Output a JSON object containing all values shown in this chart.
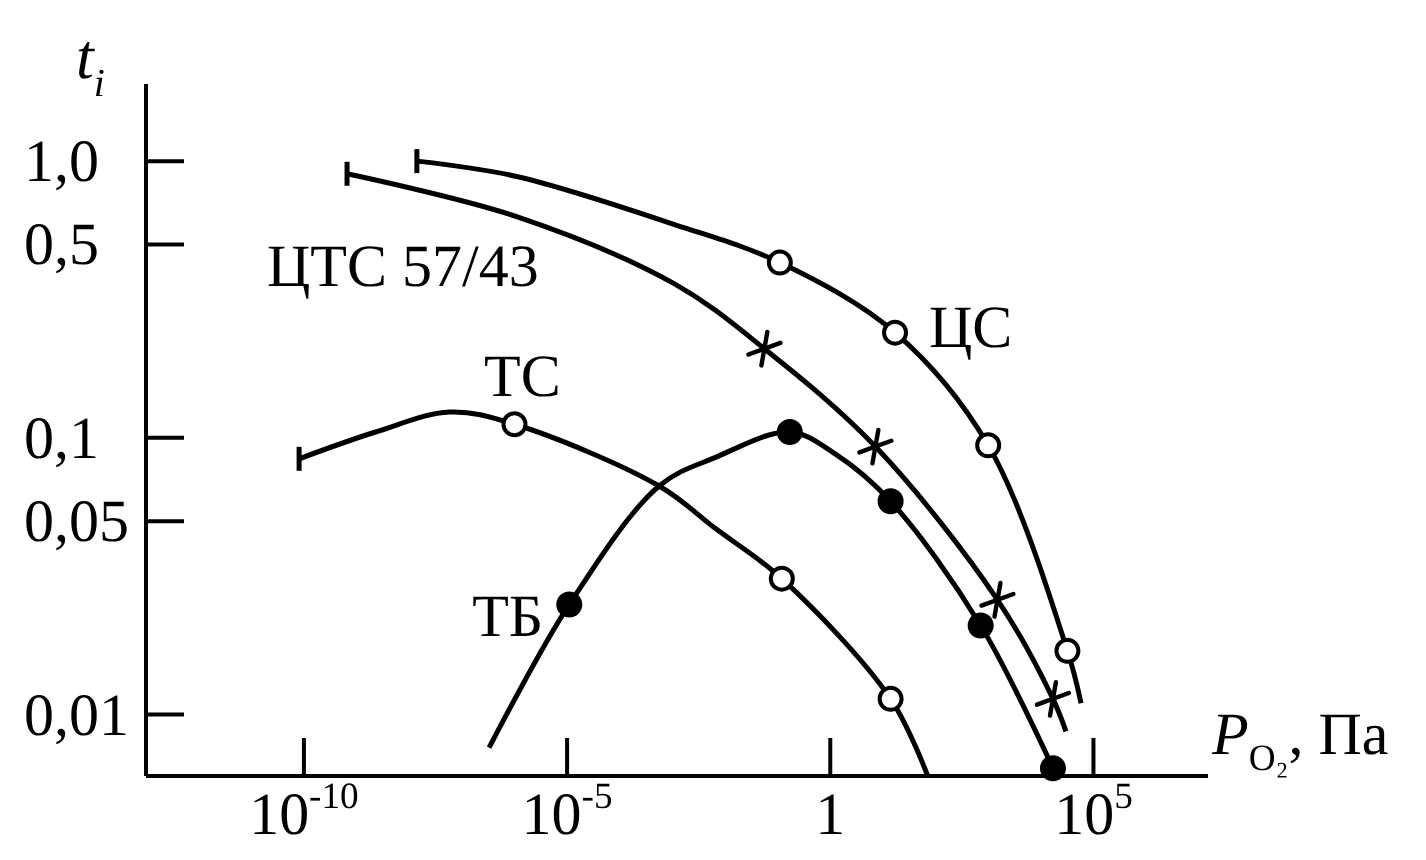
{
  "chart_data": {
    "type": "line",
    "xlabel": "P$_{O₂}$, Па",
    "ylabel": "t$_{i}$",
    "log": "xy",
    "xlim": [
      1e-13,
      15000000.0
    ],
    "ylim": [
      0.006,
      1.9
    ],
    "xticks": [
      {
        "value": 1e-10,
        "label": "10$^{-10}$"
      },
      {
        "value": 1e-05,
        "label": "10$^{-5}$"
      },
      1,
      {
        "value": 100000,
        "label": "10$^{5}$"
      }
    ],
    "yticks": [
      {
        "value": 0.01,
        "label": "0,01"
      },
      {
        "value": 0.05,
        "label": "0,05"
      },
      {
        "value": 0.1,
        "label": "0,1"
      },
      {
        "value": 0.5,
        "label": "0,5"
      },
      {
        "value": 1,
        "label": "1,0"
      }
    ],
    "series": [
      {
        "name": "ЦС",
        "color": "#000000",
        "x": [
          1.4e-08,
          1.1e-06,
          0.0011,
          0.11,
          17,
          1000,
          32000,
          58000
        ],
        "values": [
          1.0,
          0.88,
          0.59,
          0.43,
          0.24,
          0.094,
          0.017,
          0.011
        ]
      },
      {
        "type": "scatter",
        "marker": "circle",
        "color": "#ffffff",
        "x": [
          0.11,
          17,
          1000,
          32000
        ],
        "values": [
          0.43,
          0.24,
          0.094,
          0.017
        ]
      },
      {
        "name": "ЦТС 57/43",
        "color": "#000000",
        "x": [
          6.6e-10,
          1.1e-06,
          0.0011,
          0.056,
          7.2,
          1500,
          17000,
          30000
        ],
        "values": [
          0.9,
          0.63,
          0.36,
          0.21,
          0.093,
          0.026,
          0.0114,
          0.0087
        ]
      },
      {
        "type": "scatter",
        "marker": "cross",
        "color": "#000000",
        "x": [
          0.056,
          7.2,
          1500,
          17000
        ],
        "values": [
          0.21,
          0.093,
          0.026,
          0.0114
        ]
      },
      {
        "name": "ТС",
        "color": "#000000",
        "x": [
          8.1e-11,
          2.3e-09,
          5.9e-08,
          1e-06,
          0.00056,
          0.0066,
          0.12,
          14,
          71
        ],
        "values": [
          0.084,
          0.105,
          0.124,
          0.112,
          0.067,
          0.047,
          0.031,
          0.0114,
          0.006
        ]
      },
      {
        "type": "scatter",
        "marker": "circle",
        "color": "#ffffff",
        "x": [
          1e-06,
          0.12,
          14
        ],
        "values": [
          0.112,
          0.031,
          0.0114
        ]
      },
      {
        "name": "ТБ",
        "color": "#000000",
        "x": [
          3.3e-07,
          1.1e-05,
          0.00056,
          0.0066,
          0.17,
          1.3,
          14,
          720,
          17000
        ],
        "values": [
          0.0076,
          0.025,
          0.067,
          0.085,
          0.105,
          0.087,
          0.059,
          0.021,
          0.0064
        ]
      },
      {
        "type": "scatter",
        "marker": "circle",
        "color": "#000000",
        "x": [
          1.1e-05,
          0.17,
          14,
          720,
          17000
        ],
        "values": [
          0.025,
          0.105,
          0.059,
          0.021,
          0.0064
        ]
      }
    ]
  }
}
